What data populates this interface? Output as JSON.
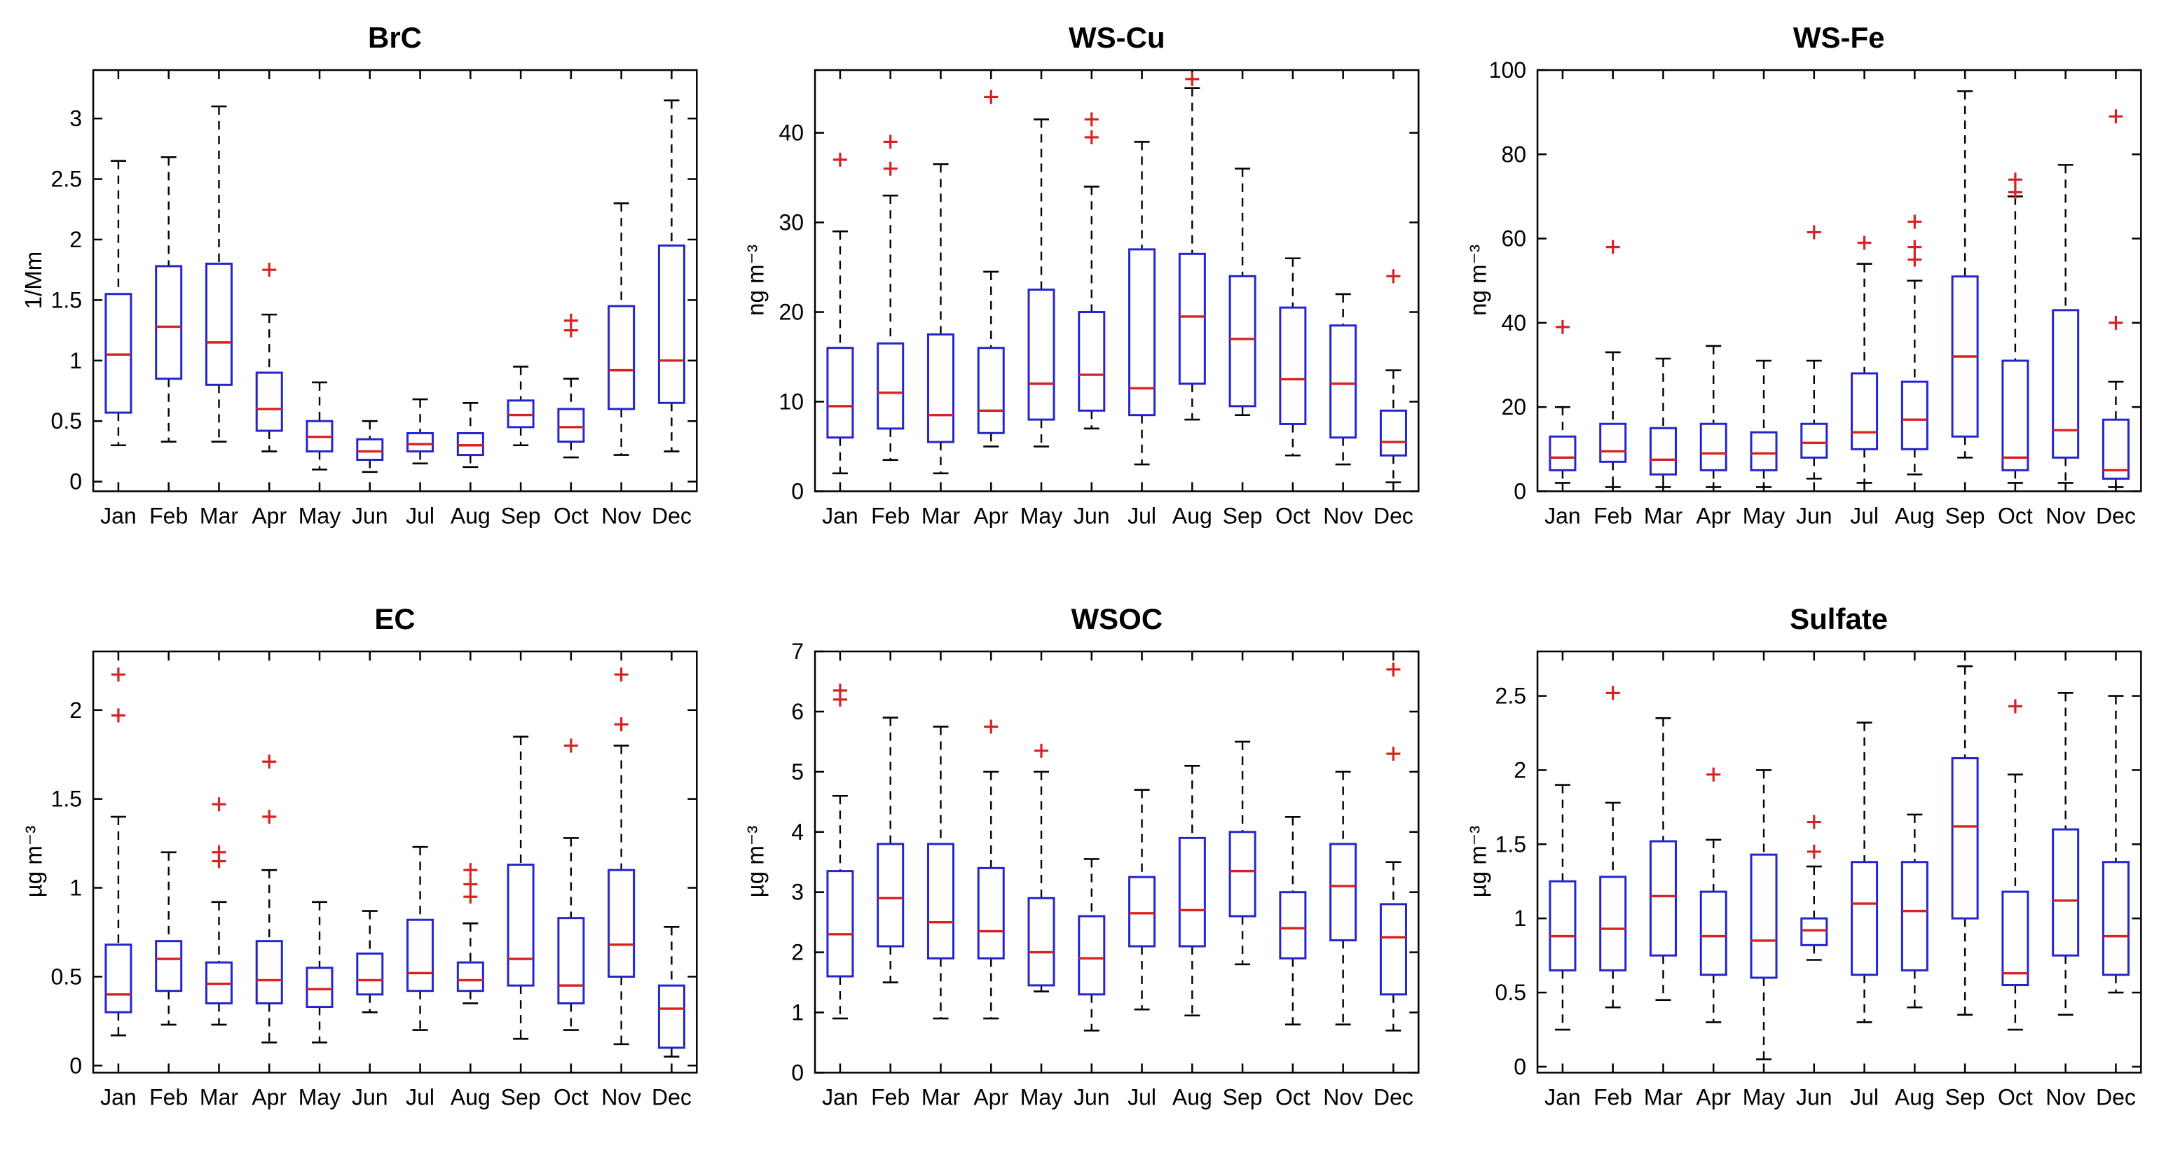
{
  "figure": {
    "background": "#ffffff"
  },
  "colors": {
    "box": "#2525cd",
    "median": "#d62222",
    "whisker": "#000000",
    "outlier": "#d62222",
    "axis": "#000000",
    "text": "#000000"
  },
  "months": [
    "Jan",
    "Feb",
    "Mar",
    "Apr",
    "May",
    "Jun",
    "Jul",
    "Aug",
    "Sep",
    "Oct",
    "Nov",
    "Dec"
  ],
  "chart_data": [
    {
      "type": "boxplot",
      "title": "BrC",
      "ylabel": "1/Mm",
      "ylim": [
        -0.08,
        3.4
      ],
      "yticks": [
        0,
        0.5,
        1,
        1.5,
        2,
        2.5,
        3
      ],
      "categories": [
        "Jan",
        "Feb",
        "Mar",
        "Apr",
        "May",
        "Jun",
        "Jul",
        "Aug",
        "Sep",
        "Oct",
        "Nov",
        "Dec"
      ],
      "boxes": [
        [
          0.3,
          0.57,
          1.05,
          1.55,
          2.65
        ],
        [
          0.33,
          0.85,
          1.28,
          1.78,
          2.68
        ],
        [
          0.33,
          0.8,
          1.15,
          1.8,
          3.1
        ],
        [
          0.25,
          0.42,
          0.6,
          0.9,
          1.38
        ],
        [
          0.1,
          0.25,
          0.37,
          0.5,
          0.82
        ],
        [
          0.08,
          0.18,
          0.25,
          0.35,
          0.5
        ],
        [
          0.15,
          0.25,
          0.31,
          0.4,
          0.68
        ],
        [
          0.12,
          0.22,
          0.3,
          0.4,
          0.65
        ],
        [
          0.3,
          0.45,
          0.55,
          0.67,
          0.95
        ],
        [
          0.2,
          0.33,
          0.45,
          0.6,
          0.85
        ],
        [
          0.22,
          0.6,
          0.92,
          1.45,
          2.3
        ],
        [
          0.25,
          0.65,
          1.0,
          1.95,
          3.15
        ]
      ],
      "outliers": [
        [],
        [],
        [],
        [
          1.75
        ],
        [],
        [],
        [],
        [],
        [],
        [
          1.25,
          1.33
        ],
        [],
        []
      ]
    },
    {
      "type": "boxplot",
      "title": "WS-Cu",
      "ylabel": "ng m⁻³",
      "ylim": [
        0,
        47
      ],
      "yticks": [
        0,
        10,
        20,
        30,
        40
      ],
      "categories": [
        "Jan",
        "Feb",
        "Mar",
        "Apr",
        "May",
        "Jun",
        "Jul",
        "Aug",
        "Sep",
        "Oct",
        "Nov",
        "Dec"
      ],
      "boxes": [
        [
          2.0,
          6.0,
          9.5,
          16.0,
          29.0
        ],
        [
          3.5,
          7.0,
          11.0,
          16.5,
          33.0
        ],
        [
          2.0,
          5.5,
          8.5,
          17.5,
          36.5
        ],
        [
          5.0,
          6.5,
          9.0,
          16.0,
          24.5
        ],
        [
          5.0,
          8.0,
          12.0,
          22.5,
          41.5
        ],
        [
          7.0,
          9.0,
          13.0,
          20.0,
          34.0
        ],
        [
          3.0,
          8.5,
          11.5,
          27.0,
          39.0
        ],
        [
          8.0,
          12.0,
          19.5,
          26.5,
          45.0
        ],
        [
          8.5,
          9.5,
          17.0,
          24.0,
          36.0
        ],
        [
          4.0,
          7.5,
          12.5,
          20.5,
          26.0
        ],
        [
          3.0,
          6.0,
          12.0,
          18.5,
          22.0
        ],
        [
          1.0,
          4.0,
          5.5,
          9.0,
          13.5
        ]
      ],
      "outliers": [
        [
          37
        ],
        [
          36,
          39
        ],
        [],
        [
          44
        ],
        [],
        [
          39.5,
          41.5
        ],
        [],
        [
          46
        ],
        [],
        [],
        [],
        [
          24
        ]
      ]
    },
    {
      "type": "boxplot",
      "title": "WS-Fe",
      "ylabel": "ng m⁻³",
      "ylim": [
        0,
        100
      ],
      "yticks": [
        0,
        20,
        40,
        60,
        80,
        100
      ],
      "categories": [
        "Jan",
        "Feb",
        "Mar",
        "Apr",
        "May",
        "Jun",
        "Jul",
        "Aug",
        "Sep",
        "Oct",
        "Nov",
        "Dec"
      ],
      "boxes": [
        [
          2,
          5,
          8,
          13,
          20
        ],
        [
          1,
          7,
          9.5,
          16,
          33
        ],
        [
          1,
          4,
          7.5,
          15,
          31.5
        ],
        [
          1,
          5,
          9,
          16,
          34.5
        ],
        [
          1,
          5,
          9,
          14,
          31
        ],
        [
          3,
          8,
          11.5,
          16,
          31
        ],
        [
          2,
          10,
          14,
          28,
          54
        ],
        [
          4,
          10,
          17,
          26,
          50
        ],
        [
          8,
          13,
          32,
          51,
          95
        ],
        [
          2,
          5,
          8,
          31,
          70
        ],
        [
          2,
          8,
          14.5,
          43,
          77.5
        ],
        [
          1,
          3,
          5,
          17,
          26
        ]
      ],
      "outliers": [
        [
          39
        ],
        [
          58
        ],
        [],
        [],
        [],
        [
          61.5
        ],
        [
          59
        ],
        [
          55,
          58,
          64
        ],
        [],
        [
          71,
          74
        ],
        [],
        [
          40,
          89
        ]
      ]
    },
    {
      "type": "boxplot",
      "title": "EC",
      "ylabel": "µg m⁻³",
      "ylim": [
        -0.04,
        2.33
      ],
      "yticks": [
        0,
        0.5,
        1,
        1.5,
        2
      ],
      "categories": [
        "Jan",
        "Feb",
        "Mar",
        "Apr",
        "May",
        "Jun",
        "Jul",
        "Aug",
        "Sep",
        "Oct",
        "Nov",
        "Dec"
      ],
      "boxes": [
        [
          0.17,
          0.3,
          0.4,
          0.68,
          1.4
        ],
        [
          0.23,
          0.42,
          0.6,
          0.7,
          1.2
        ],
        [
          0.23,
          0.35,
          0.46,
          0.58,
          0.92
        ],
        [
          0.13,
          0.35,
          0.48,
          0.7,
          1.1
        ],
        [
          0.13,
          0.33,
          0.43,
          0.55,
          0.92
        ],
        [
          0.3,
          0.4,
          0.48,
          0.63,
          0.87
        ],
        [
          0.2,
          0.42,
          0.52,
          0.82,
          1.23
        ],
        [
          0.35,
          0.42,
          0.48,
          0.58,
          0.8
        ],
        [
          0.15,
          0.45,
          0.6,
          1.13,
          1.85
        ],
        [
          0.2,
          0.35,
          0.45,
          0.83,
          1.28
        ],
        [
          0.12,
          0.5,
          0.68,
          1.1,
          1.8
        ],
        [
          0.05,
          0.1,
          0.32,
          0.45,
          0.78
        ]
      ],
      "outliers": [
        [
          1.97,
          2.2
        ],
        [],
        [
          1.15,
          1.2,
          1.47
        ],
        [
          1.4,
          1.71
        ],
        [],
        [],
        [],
        [
          0.95,
          1.02,
          1.1
        ],
        [],
        [
          1.8
        ],
        [
          1.92,
          2.2
        ],
        []
      ]
    },
    {
      "type": "boxplot",
      "title": "WSOC",
      "ylabel": "µg m⁻³",
      "ylim": [
        0,
        7
      ],
      "yticks": [
        0,
        1,
        2,
        3,
        4,
        5,
        6,
        7
      ],
      "categories": [
        "Jan",
        "Feb",
        "Mar",
        "Apr",
        "May",
        "Jun",
        "Jul",
        "Aug",
        "Sep",
        "Oct",
        "Nov",
        "Dec"
      ],
      "boxes": [
        [
          0.9,
          1.6,
          2.3,
          3.35,
          4.6
        ],
        [
          1.5,
          2.1,
          2.9,
          3.8,
          5.9
        ],
        [
          0.9,
          1.9,
          2.5,
          3.8,
          5.75
        ],
        [
          0.9,
          1.9,
          2.35,
          3.4,
          5.0
        ],
        [
          1.35,
          1.45,
          2.0,
          2.9,
          5.0
        ],
        [
          0.7,
          1.3,
          1.9,
          2.6,
          3.55
        ],
        [
          1.05,
          2.1,
          2.65,
          3.25,
          4.7
        ],
        [
          0.95,
          2.1,
          2.7,
          3.9,
          5.1
        ],
        [
          1.8,
          2.6,
          3.35,
          4.0,
          5.5
        ],
        [
          0.8,
          1.9,
          2.4,
          3.0,
          4.25
        ],
        [
          0.8,
          2.2,
          3.1,
          3.8,
          5.0
        ],
        [
          0.7,
          1.3,
          2.25,
          2.8,
          3.5
        ]
      ],
      "outliers": [
        [
          6.2,
          6.35
        ],
        [],
        [],
        [
          5.75
        ],
        [
          5.35
        ],
        [],
        [],
        [],
        [],
        [],
        [],
        [
          5.3,
          6.7
        ]
      ]
    },
    {
      "type": "boxplot",
      "title": "Sulfate",
      "ylabel": "µg m⁻³",
      "ylim": [
        -0.04,
        2.8
      ],
      "yticks": [
        0,
        0.5,
        1,
        1.5,
        2,
        2.5
      ],
      "categories": [
        "Jan",
        "Feb",
        "Mar",
        "Apr",
        "May",
        "Jun",
        "Jul",
        "Aug",
        "Sep",
        "Oct",
        "Nov",
        "Dec"
      ],
      "boxes": [
        [
          0.25,
          0.65,
          0.88,
          1.25,
          1.9
        ],
        [
          0.4,
          0.65,
          0.93,
          1.28,
          1.78
        ],
        [
          0.45,
          0.75,
          1.15,
          1.52,
          2.35
        ],
        [
          0.3,
          0.62,
          0.88,
          1.18,
          1.53
        ],
        [
          0.05,
          0.6,
          0.85,
          1.43,
          2.0
        ],
        [
          0.72,
          0.82,
          0.92,
          1.0,
          1.35
        ],
        [
          0.3,
          0.62,
          1.1,
          1.38,
          2.32
        ],
        [
          0.4,
          0.65,
          1.05,
          1.38,
          1.7
        ],
        [
          0.35,
          1.0,
          1.62,
          2.08,
          2.7
        ],
        [
          0.25,
          0.55,
          0.63,
          1.18,
          1.97
        ],
        [
          0.35,
          0.75,
          1.12,
          1.6,
          2.52
        ],
        [
          0.5,
          0.62,
          0.88,
          1.38,
          2.5
        ]
      ],
      "outliers": [
        [],
        [
          2.52
        ],
        [],
        [
          1.97
        ],
        [],
        [
          1.45,
          1.65
        ],
        [],
        [],
        [],
        [
          2.43
        ],
        [],
        []
      ]
    }
  ]
}
